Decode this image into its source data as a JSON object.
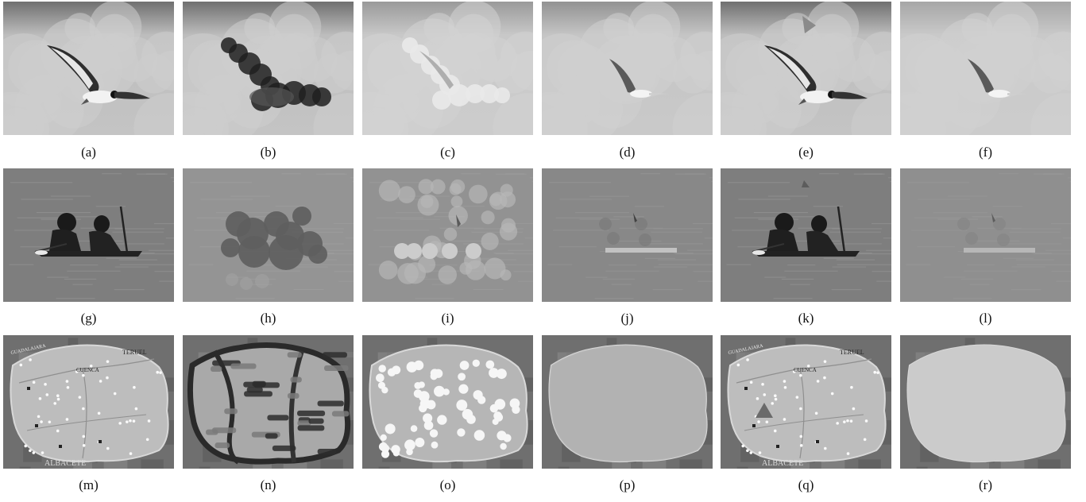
{
  "figure": {
    "panels": [
      {
        "id": "a",
        "label": "(a)",
        "scene": "seagull",
        "variant": "original"
      },
      {
        "id": "b",
        "label": "(b)",
        "scene": "seagull",
        "variant": "dark-blobs"
      },
      {
        "id": "c",
        "label": "(c)",
        "scene": "seagull",
        "variant": "bright-blobs"
      },
      {
        "id": "d",
        "label": "(d)",
        "scene": "seagull",
        "variant": "faint"
      },
      {
        "id": "e",
        "label": "(e)",
        "scene": "seagull",
        "variant": "original-triangle"
      },
      {
        "id": "f",
        "label": "(f)",
        "scene": "seagull",
        "variant": "faint-light"
      },
      {
        "id": "g",
        "label": "(g)",
        "scene": "kayak",
        "variant": "original"
      },
      {
        "id": "h",
        "label": "(h)",
        "scene": "kayak",
        "variant": "dark-blobs"
      },
      {
        "id": "i",
        "label": "(i)",
        "scene": "kayak",
        "variant": "bright-blobs"
      },
      {
        "id": "j",
        "label": "(j)",
        "scene": "kayak",
        "variant": "faint"
      },
      {
        "id": "k",
        "label": "(k)",
        "scene": "kayak",
        "variant": "original-triangle"
      },
      {
        "id": "l",
        "label": "(l)",
        "scene": "kayak",
        "variant": "faint-light"
      },
      {
        "id": "m",
        "label": "(m)",
        "scene": "map",
        "variant": "original"
      },
      {
        "id": "n",
        "label": "(n)",
        "scene": "map",
        "variant": "dark-blobs"
      },
      {
        "id": "o",
        "label": "(o)",
        "scene": "map",
        "variant": "bright-blobs"
      },
      {
        "id": "p",
        "label": "(p)",
        "scene": "map",
        "variant": "faint"
      },
      {
        "id": "q",
        "label": "(q)",
        "scene": "map",
        "variant": "original-triangle"
      },
      {
        "id": "r",
        "label": "(r)",
        "scene": "map",
        "variant": "faint-light"
      }
    ],
    "map_text": {
      "cuenca": "CUENCA",
      "teruel": "TERUEL",
      "albacete": "ALBACETE",
      "guadalajara": "GUADALAJARA"
    },
    "colors": {
      "sky_top": "#6e6e6e",
      "cloud": "#c9c9c9",
      "water": "#7d7d7d",
      "map_land": "#b9b9b9",
      "map_dark": "#5a5a5a"
    }
  }
}
